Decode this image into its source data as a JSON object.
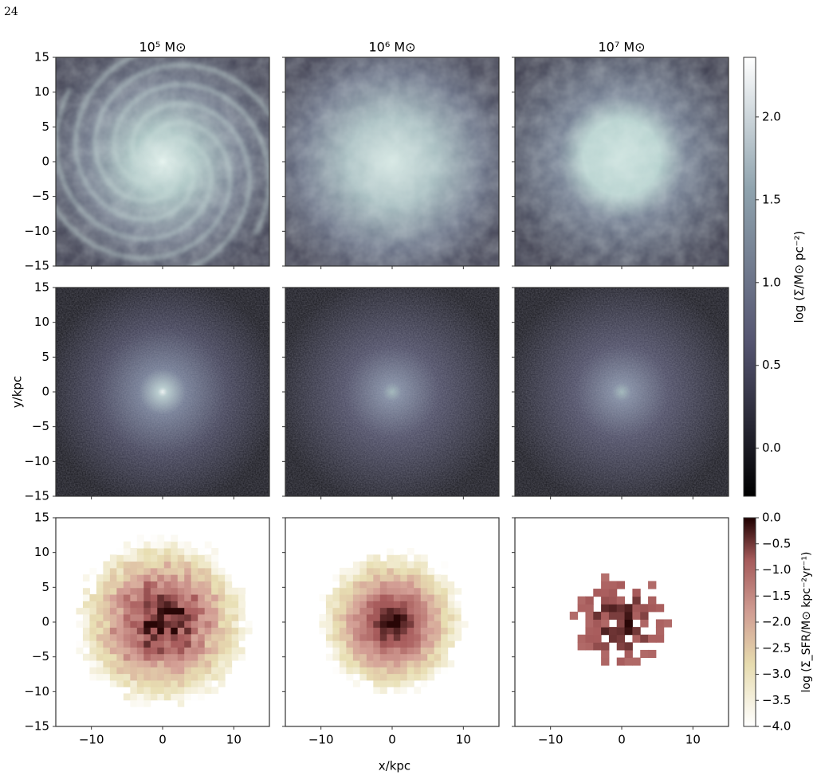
{
  "page_number": "24",
  "chart_data": {
    "type": "image-grid",
    "column_titles": [
      "10⁵ M⊙",
      "10⁶ M⊙",
      "10⁷ M⊙"
    ],
    "xlabel": "x/kpc",
    "ylabel": "y/kpc",
    "xlim": [
      -15,
      15
    ],
    "ylim": [
      -15,
      15
    ],
    "xticks": [
      {
        "value": -10,
        "label": "−10"
      },
      0,
      10
    ],
    "yticks": [
      {
        "value": -15,
        "label": "−15"
      },
      {
        "value": -10,
        "label": "−10"
      },
      {
        "value": -5,
        "label": "−5"
      },
      0,
      5,
      10,
      15
    ],
    "colorbars": [
      {
        "label": "log (Σ/M⊙ pc⁻²)",
        "lim": [
          -0.29,
          2.36
        ],
        "ticks": [
          {
            "value": 0,
            "label": "0.0"
          },
          0.5,
          {
            "value": 1,
            "label": "1.0"
          },
          1.5,
          {
            "value": 2,
            "label": "2.0"
          }
        ]
      },
      {
        "label": "log (Σ_SFR/M⊙ kpc⁻²yr⁻¹)",
        "lim": [
          -4,
          0
        ],
        "ticks": [
          {
            "value": 0,
            "label": "0.0"
          },
          {
            "value": -0.5,
            "label": "−0.5"
          },
          {
            "value": -1,
            "label": "−1.0"
          },
          {
            "value": -1.5,
            "label": "−1.5"
          },
          {
            "value": -2,
            "label": "−2.0"
          },
          {
            "value": -2.5,
            "label": "−2.5"
          },
          {
            "value": -3,
            "label": "−3.0"
          },
          {
            "value": -3.5,
            "label": "−3.5"
          },
          {
            "value": -4,
            "label": "−4.0"
          }
        ]
      }
    ]
  }
}
